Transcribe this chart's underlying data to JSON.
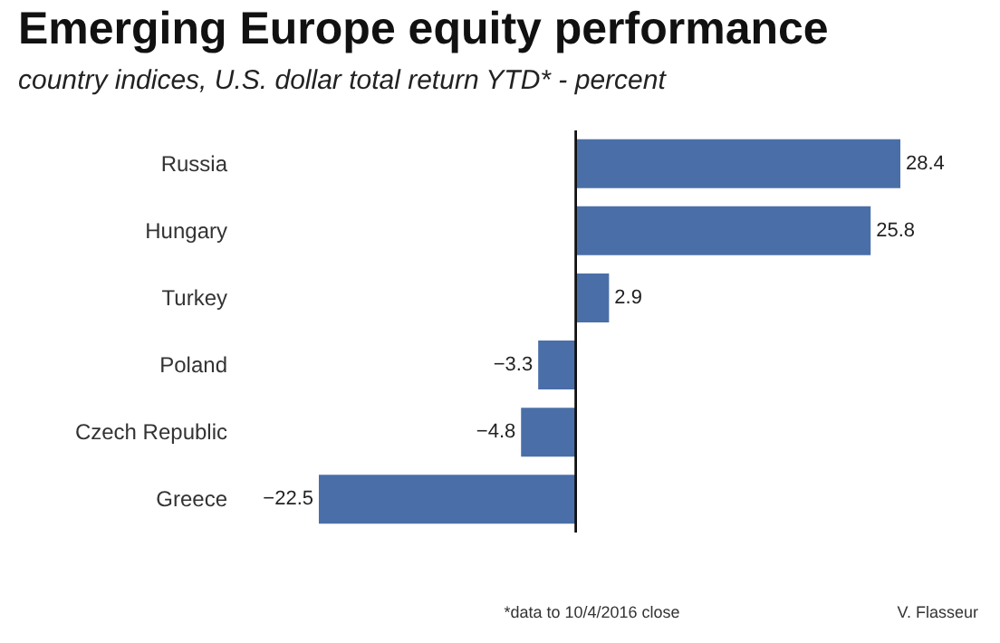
{
  "chart_data": {
    "type": "bar",
    "title": "Emerging Europe equity performance",
    "subtitle": "country indices, U.S. dollar total return YTD* - percent",
    "orientation": "horizontal",
    "categories": [
      "Russia",
      "Hungary",
      "Turkey",
      "Poland",
      "Czech Republic",
      "Greece"
    ],
    "series": [
      {
        "color": "#4a6fa8",
        "values": [
          28.4,
          25.8,
          2.9,
          -3.3,
          -4.8,
          -22.5
        ]
      }
    ],
    "data_labels": true,
    "annotations": [
      "*data to 10/4/2016 close",
      "V. Flasseur"
    ]
  }
}
